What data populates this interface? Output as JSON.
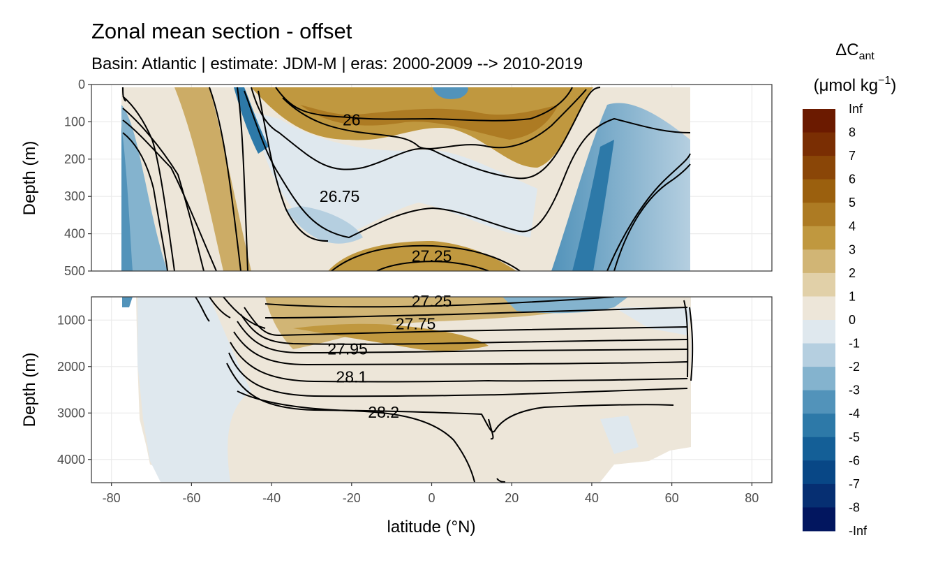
{
  "chart_data": {
    "type": "heatmap",
    "title": "Zonal mean section - offset",
    "subtitle": "Basin: Atlantic | estimate: JDM-M | eras: 2000-2009 --> 2010-2019",
    "xlabel": "latitude (°N)",
    "ylabel": "Depth (m)",
    "xlim": [
      -85,
      85
    ],
    "x_ticks": [
      -80,
      -60,
      -40,
      -20,
      0,
      20,
      40,
      60,
      80
    ],
    "panels": [
      {
        "name": "upper",
        "ylim": [
          0,
          500
        ],
        "y_ticks": [
          0,
          100,
          200,
          300,
          400,
          500
        ],
        "y_reversed": true
      },
      {
        "name": "lower",
        "ylim": [
          500,
          4500
        ],
        "y_ticks": [
          1000,
          2000,
          3000,
          4000
        ],
        "y_reversed": true
      }
    ],
    "legend": {
      "title": "ΔC",
      "title_sub": "ant",
      "unit": "(μmol kg",
      "unit_sup": "−1",
      "unit_end": ")",
      "placement": "right",
      "labels": [
        "Inf",
        "8",
        "7",
        "6",
        "5",
        "4",
        "3",
        "2",
        "1",
        "0",
        "-1",
        "-2",
        "-3",
        "-4",
        "-5",
        "-6",
        "-7",
        "-8",
        "-Inf"
      ],
      "colors": [
        "#6b1a00",
        "#7a2e03",
        "#8a4607",
        "#9b600e",
        "#ad7b23",
        "#c0983f",
        "#d1b575",
        "#e1d0a8",
        "#ede6d9",
        "#dfe8ee",
        "#b5cfe0",
        "#84b3ce",
        "#5293ba",
        "#2d79a8",
        "#145f97",
        "#084786",
        "#062f72",
        "#02165f"
      ]
    },
    "density_contours": [
      {
        "label": "26",
        "x": -20,
        "depth": 95
      },
      {
        "label": "26.75",
        "x": -23,
        "depth": 300
      },
      {
        "label": "27.25",
        "x": 0,
        "depth": 460
      },
      {
        "label": "27.25",
        "x": 0,
        "depth": 590
      },
      {
        "label": "27.75",
        "x": -4,
        "depth": 1080
      },
      {
        "label": "27.95",
        "x": -21,
        "depth": 1620
      },
      {
        "label": "28.1",
        "x": -20,
        "depth": 2220
      },
      {
        "label": "28.2",
        "x": -12,
        "depth": 2980
      }
    ]
  }
}
